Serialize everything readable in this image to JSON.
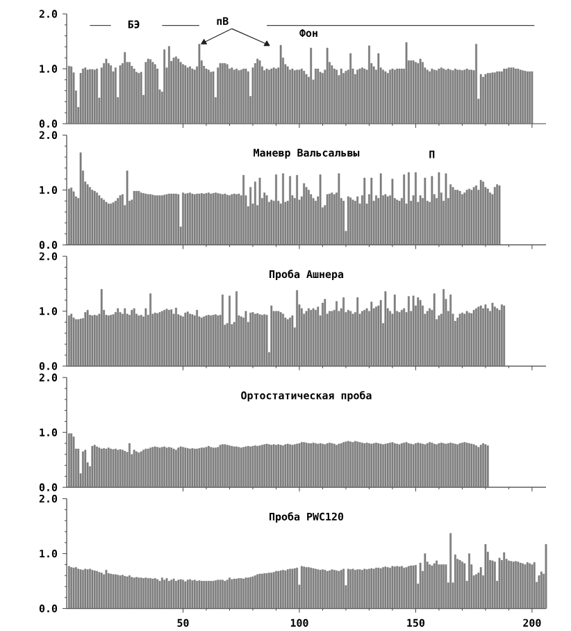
{
  "chart_data": [
    {
      "type": "bar",
      "xlim": [
        0,
        206
      ],
      "ylim": [
        0,
        2
      ],
      "xticks": [
        50,
        100,
        150,
        200
      ],
      "yticks": [
        {
          "value": 0,
          "label": "0.0"
        },
        {
          "value": 1,
          "label": "1.0"
        },
        {
          "value": 2,
          "label": "2.0"
        }
      ],
      "tick_labels": "y",
      "annotations": [
        "БЭ",
        "пВ",
        "Фон"
      ],
      "series": [
        {
          "type": "bar",
          "color": "#808080",
          "x": [
            1,
            2,
            3,
            4,
            5,
            6,
            7,
            8,
            9,
            10,
            11,
            12,
            13,
            14,
            15,
            16,
            17,
            18,
            19,
            20,
            21,
            22,
            23,
            24,
            25,
            26,
            27,
            28,
            29,
            30,
            31,
            32,
            33,
            34,
            35,
            36,
            37,
            38,
            39,
            40,
            41,
            42,
            43,
            44,
            45,
            46,
            47,
            48,
            49,
            50,
            51,
            52,
            53,
            54,
            55,
            56,
            57,
            58,
            59,
            60,
            61,
            62,
            63,
            64,
            65,
            66,
            67,
            68,
            69,
            70,
            71,
            72,
            73,
            74,
            75,
            76,
            77,
            78,
            79,
            80,
            81,
            82,
            83,
            84,
            85,
            86,
            87,
            88,
            89,
            90,
            91,
            92,
            93,
            94,
            95,
            96,
            97,
            98,
            99,
            100,
            101,
            102,
            103,
            104,
            105,
            106,
            107,
            108,
            109,
            110,
            111,
            112,
            113,
            114,
            115,
            116,
            117,
            118,
            119,
            120,
            121,
            122,
            123,
            124,
            125,
            126,
            127,
            128,
            129,
            130,
            131,
            132,
            133,
            134,
            135,
            136,
            137,
            138,
            139,
            140,
            141,
            142,
            143,
            144,
            145,
            146,
            147,
            148,
            149,
            150,
            151,
            152,
            153,
            154,
            155,
            156,
            157,
            158,
            159,
            160,
            161,
            162,
            163,
            164,
            165,
            166,
            167,
            168,
            169,
            170,
            171,
            172,
            173,
            174,
            175,
            176,
            177,
            178,
            179,
            180,
            181,
            182,
            183,
            184,
            185,
            186,
            187,
            188,
            189,
            190,
            191,
            192,
            193,
            194,
            195,
            196,
            197,
            198,
            199,
            200
          ],
          "values": [
            1.05,
            1.04,
            0.93,
            0.6,
            0.3,
            0.92,
            1.0,
            1.02,
            0.98,
            0.99,
            0.99,
            0.98,
            1.0,
            0.47,
            1.02,
            1.1,
            1.18,
            1.1,
            1.06,
            0.95,
            1.02,
            0.48,
            1.06,
            1.1,
            1.3,
            1.12,
            1.12,
            1.05,
            1.0,
            0.94,
            0.92,
            0.94,
            0.52,
            1.12,
            1.18,
            1.17,
            1.12,
            1.08,
            1.0,
            0.62,
            0.58,
            1.35,
            1.02,
            1.41,
            1.14,
            1.2,
            1.22,
            1.18,
            1.12,
            1.08,
            1.06,
            1.02,
            1.04,
            1.0,
            0.98,
            1.04,
            1.45,
            1.15,
            1.05,
            1.0,
            0.98,
            0.94,
            0.95,
            0.48,
            1.02,
            1.1,
            1.1,
            1.1,
            1.08,
            1.0,
            1.02,
            0.98,
            1.0,
            0.97,
            0.98,
            1.0,
            1.0,
            0.95,
            0.5,
            1.02,
            1.1,
            1.18,
            1.15,
            1.04,
            0.97,
            1.0,
            0.98,
            1.0,
            1.02,
            1.0,
            1.02,
            1.43,
            1.2,
            1.08,
            1.04,
            0.98,
            1.0,
            0.97,
            0.98,
            0.98,
            1.0,
            0.96,
            0.9,
            0.85,
            1.38,
            0.8,
            1.0,
            1.0,
            0.94,
            0.92,
            0.98,
            1.38,
            1.12,
            1.06,
            1.0,
            0.98,
            0.88,
            1.0,
            0.92,
            0.96,
            0.98,
            1.28,
            1.0,
            0.9,
            0.98,
            1.0,
            1.02,
            1.0,
            0.98,
            1.42,
            1.1,
            1.04,
            0.98,
            1.28,
            1.02,
            0.98,
            0.95,
            0.92,
            0.98,
            1.0,
            0.98,
            1.0,
            1.0,
            1.0,
            1.0,
            1.48,
            1.15,
            1.15,
            1.15,
            1.12,
            1.1,
            1.18,
            1.12,
            1.02,
            0.98,
            0.95,
            1.0,
            0.98,
            0.97,
            1.0,
            1.02,
            1.0,
            0.98,
            1.0,
            0.98,
            0.97,
            1.0,
            0.98,
            0.98,
            0.97,
            0.98,
            1.0,
            0.98,
            0.98,
            0.97,
            1.45,
            0.45,
            0.9,
            0.85,
            0.9,
            0.92,
            0.92,
            0.93,
            0.93,
            0.95,
            0.95,
            0.95,
            1.0,
            1.0,
            1.02,
            1.02,
            1.02,
            1.0,
            1.0,
            0.98,
            0.97,
            0.96,
            0.95,
            0.95,
            0.95
          ]
        },
        {
          "type": "line",
          "color": "#404040",
          "x": [
            10,
            19
          ],
          "values": [
            1.79,
            1.79
          ]
        },
        {
          "type": "line",
          "color": "#404040",
          "x": [
            41,
            57
          ],
          "values": [
            1.79,
            1.79
          ]
        },
        {
          "type": "line",
          "color": "#404040",
          "x": [
            86,
            201
          ],
          "values": [
            1.79,
            1.79
          ]
        },
        {
          "type": "line",
          "color": "#202020",
          "marker": "triangle",
          "x": [
            71,
            59
          ],
          "values": [
            1.73,
            1.48
          ]
        },
        {
          "type": "line",
          "color": "#202020",
          "marker": "triangle",
          "x": [
            71,
            86
          ],
          "values": [
            1.73,
            1.45
          ]
        }
      ]
    },
    {
      "type": "bar",
      "title": "Маневр Вальсальвы",
      "color": "#808080",
      "xlim": [
        0,
        206
      ],
      "ylim": [
        0,
        2
      ],
      "xticks": [
        50,
        100,
        150,
        200
      ],
      "yticks": [
        {
          "value": 0,
          "label": "0.0"
        },
        {
          "value": 1,
          "label": "1.0"
        },
        {
          "value": 2,
          "label": "2.0"
        }
      ],
      "tick_labels": "y",
      "annotations": [
        "П"
      ],
      "x": [
        1,
        2,
        3,
        4,
        5,
        6,
        7,
        8,
        9,
        10,
        11,
        12,
        13,
        14,
        15,
        16,
        17,
        18,
        19,
        20,
        21,
        22,
        23,
        24,
        25,
        26,
        27,
        28,
        29,
        30,
        31,
        32,
        33,
        34,
        35,
        36,
        37,
        38,
        39,
        40,
        41,
        42,
        43,
        44,
        45,
        46,
        47,
        48,
        49,
        50,
        51,
        52,
        53,
        54,
        55,
        56,
        57,
        58,
        59,
        60,
        61,
        62,
        63,
        64,
        65,
        66,
        67,
        68,
        69,
        70,
        71,
        72,
        73,
        74,
        75,
        76,
        77,
        78,
        79,
        80,
        81,
        82,
        83,
        84,
        85,
        86,
        87,
        88,
        89,
        90,
        91,
        92,
        93,
        94,
        95,
        96,
        97,
        98,
        99,
        100,
        101,
        102,
        103,
        104,
        105,
        106,
        107,
        108,
        109,
        110,
        111,
        112,
        113,
        114,
        115,
        116,
        117,
        118,
        119,
        120,
        121,
        122,
        123,
        124,
        125,
        126,
        127,
        128,
        129,
        130,
        131,
        132,
        133,
        134,
        135,
        136,
        137,
        138,
        139,
        140,
        141,
        142,
        143,
        144,
        145,
        146,
        147,
        148,
        149,
        150,
        151,
        152,
        153,
        154,
        155,
        156,
        157,
        158,
        159,
        160,
        161,
        162,
        163,
        164,
        165,
        166,
        167,
        168,
        169,
        170,
        171,
        172,
        173,
        174,
        175,
        176,
        177,
        178,
        179,
        180,
        181,
        182,
        183,
        184,
        185,
        186
      ],
      "values": [
        1.02,
        1.04,
        0.97,
        0.88,
        0.85,
        1.68,
        1.35,
        1.15,
        1.1,
        1.05,
        1.0,
        0.98,
        0.95,
        0.9,
        0.85,
        0.82,
        0.78,
        0.75,
        0.75,
        0.77,
        0.8,
        0.85,
        0.9,
        0.92,
        0.72,
        1.35,
        0.8,
        0.82,
        0.98,
        0.98,
        0.98,
        0.95,
        0.94,
        0.93,
        0.92,
        0.92,
        0.91,
        0.9,
        0.9,
        0.9,
        0.9,
        0.91,
        0.92,
        0.93,
        0.93,
        0.93,
        0.93,
        0.92,
        0.33,
        0.95,
        0.93,
        0.94,
        0.95,
        0.93,
        0.92,
        0.93,
        0.93,
        0.94,
        0.93,
        0.94,
        0.95,
        0.93,
        0.94,
        0.95,
        0.94,
        0.93,
        0.92,
        0.93,
        0.91,
        0.9,
        0.92,
        0.93,
        0.92,
        0.93,
        0.9,
        1.27,
        0.9,
        0.7,
        1.05,
        0.75,
        1.15,
        0.72,
        1.22,
        0.85,
        0.95,
        0.9,
        0.78,
        0.82,
        0.8,
        1.28,
        0.8,
        0.75,
        1.3,
        0.78,
        0.8,
        1.25,
        0.9,
        0.85,
        1.27,
        0.82,
        0.88,
        1.12,
        1.05,
        1.0,
        0.92,
        0.85,
        0.8,
        0.88,
        1.28,
        0.68,
        0.72,
        0.92,
        0.93,
        0.95,
        0.92,
        0.95,
        1.3,
        0.85,
        0.8,
        0.25,
        0.88,
        0.86,
        0.82,
        0.8,
        0.88,
        0.75,
        0.9,
        1.22,
        0.75,
        0.92,
        1.22,
        0.8,
        0.9,
        0.85,
        1.3,
        0.9,
        0.92,
        0.88,
        0.9,
        1.2,
        0.85,
        0.82,
        0.8,
        0.85,
        1.28,
        0.75,
        1.32,
        0.8,
        0.9,
        1.32,
        0.78,
        0.9,
        0.85,
        1.22,
        0.8,
        0.78,
        1.25,
        0.92,
        0.85,
        1.32,
        0.95,
        0.8,
        1.3,
        0.85,
        1.1,
        1.05,
        1.0,
        1.0,
        0.98,
        0.92,
        0.95,
        1.0,
        1.02,
        1.0,
        1.05,
        1.08,
        1.0,
        1.18,
        1.15,
        1.05,
        1.02,
        0.95,
        0.92,
        1.05,
        1.1,
        1.08
      ]
    },
    {
      "type": "bar",
      "title": "Проба Ашнера",
      "color": "#808080",
      "xlim": [
        0,
        206
      ],
      "ylim": [
        0,
        2
      ],
      "xticks": [
        50,
        100,
        150,
        200
      ],
      "yticks": [
        {
          "value": 0,
          "label": "0.0"
        },
        {
          "value": 1,
          "label": "1.0"
        },
        {
          "value": 2,
          "label": "2.0"
        }
      ],
      "tick_labels": "y",
      "x": [
        1,
        2,
        3,
        4,
        5,
        6,
        7,
        8,
        9,
        10,
        11,
        12,
        13,
        14,
        15,
        16,
        17,
        18,
        19,
        20,
        21,
        22,
        23,
        24,
        25,
        26,
        27,
        28,
        29,
        30,
        31,
        32,
        33,
        34,
        35,
        36,
        37,
        38,
        39,
        40,
        41,
        42,
        43,
        44,
        45,
        46,
        47,
        48,
        49,
        50,
        51,
        52,
        53,
        54,
        55,
        56,
        57,
        58,
        59,
        60,
        61,
        62,
        63,
        64,
        65,
        66,
        67,
        68,
        69,
        70,
        71,
        72,
        73,
        74,
        75,
        76,
        77,
        78,
        79,
        80,
        81,
        82,
        83,
        84,
        85,
        86,
        87,
        88,
        89,
        90,
        91,
        92,
        93,
        94,
        95,
        96,
        97,
        98,
        99,
        100,
        101,
        102,
        103,
        104,
        105,
        106,
        107,
        108,
        109,
        110,
        111,
        112,
        113,
        114,
        115,
        116,
        117,
        118,
        119,
        120,
        121,
        122,
        123,
        124,
        125,
        126,
        127,
        128,
        129,
        130,
        131,
        132,
        133,
        134,
        135,
        136,
        137,
        138,
        139,
        140,
        141,
        142,
        143,
        144,
        145,
        146,
        147,
        148,
        149,
        150,
        151,
        152,
        153,
        154,
        155,
        156,
        157,
        158,
        159,
        160,
        161,
        162,
        163,
        164,
        165,
        166,
        167,
        168,
        169,
        170,
        171,
        172,
        173,
        174,
        175,
        176,
        177,
        178,
        179,
        180,
        181,
        182,
        183,
        184,
        185,
        186,
        187,
        188
      ],
      "values": [
        0.92,
        0.95,
        0.88,
        0.85,
        0.85,
        0.86,
        0.87,
        0.98,
        1.02,
        0.93,
        0.92,
        0.93,
        0.92,
        0.95,
        1.4,
        1.02,
        0.93,
        0.92,
        0.93,
        0.94,
        0.98,
        1.05,
        0.98,
        0.95,
        1.05,
        0.95,
        0.93,
        1.02,
        1.05,
        0.95,
        0.92,
        0.93,
        0.9,
        1.05,
        0.93,
        1.32,
        0.95,
        0.97,
        0.96,
        0.98,
        1.0,
        1.02,
        1.04,
        1.02,
        1.03,
        0.95,
        1.06,
        0.94,
        0.92,
        0.9,
        0.97,
        0.99,
        0.95,
        0.94,
        0.92,
        1.02,
        0.9,
        0.88,
        0.9,
        0.92,
        0.93,
        0.92,
        0.93,
        0.94,
        0.92,
        0.93,
        1.3,
        0.75,
        0.78,
        1.28,
        0.76,
        0.8,
        1.36,
        0.92,
        0.9,
        0.88,
        1.0,
        0.8,
        0.97,
        0.98,
        0.95,
        0.96,
        0.94,
        0.93,
        0.94,
        0.93,
        0.25,
        1.1,
        1.0,
        1.0,
        1.0,
        0.98,
        0.95,
        0.88,
        0.85,
        0.88,
        0.92,
        0.7,
        1.38,
        1.12,
        1.05,
        0.95,
        1.0,
        1.05,
        1.02,
        1.05,
        1.02,
        1.08,
        0.92,
        1.15,
        1.22,
        0.95,
        1.0,
        1.0,
        1.02,
        1.18,
        1.0,
        1.05,
        1.25,
        0.98,
        1.02,
        1.0,
        0.95,
        0.98,
        1.25,
        0.95,
        1.0,
        1.02,
        1.05,
        1.0,
        1.17,
        1.05,
        1.08,
        1.1,
        1.2,
        0.78,
        1.36,
        1.05,
        1.0,
        0.95,
        1.3,
        1.0,
        0.98,
        1.02,
        1.05,
        0.98,
        1.27,
        1.0,
        1.28,
        1.1,
        1.25,
        1.2,
        1.1,
        0.95,
        1.0,
        1.05,
        1.02,
        1.32,
        0.85,
        0.92,
        0.95,
        1.4,
        1.22,
        1.0,
        1.3,
        0.95,
        0.82,
        0.88,
        0.95,
        0.97,
        0.95,
        1.0,
        0.97,
        0.96,
        1.02,
        1.05,
        1.08,
        1.1,
        1.05,
        1.12,
        1.05,
        1.0,
        1.15,
        1.08,
        1.05,
        1.02,
        1.12,
        1.1
      ]
    },
    {
      "type": "bar",
      "title": "Ортостатическая проба",
      "color": "#808080",
      "xlim": [
        0,
        206
      ],
      "ylim": [
        0,
        2
      ],
      "xticks": [
        50,
        100,
        150,
        200
      ],
      "yticks": [
        {
          "value": 0,
          "label": "0.0"
        },
        {
          "value": 1,
          "label": "1.0"
        },
        {
          "value": 2,
          "label": "2.0"
        }
      ],
      "tick_labels": "y",
      "x": [
        1,
        2,
        3,
        4,
        5,
        6,
        7,
        8,
        9,
        10,
        11,
        12,
        13,
        14,
        15,
        16,
        17,
        18,
        19,
        20,
        21,
        22,
        23,
        24,
        25,
        26,
        27,
        28,
        29,
        30,
        31,
        32,
        33,
        34,
        35,
        36,
        37,
        38,
        39,
        40,
        41,
        42,
        43,
        44,
        45,
        46,
        47,
        48,
        49,
        50,
        51,
        52,
        53,
        54,
        55,
        56,
        57,
        58,
        59,
        60,
        61,
        62,
        63,
        64,
        65,
        66,
        67,
        68,
        69,
        70,
        71,
        72,
        73,
        74,
        75,
        76,
        77,
        78,
        79,
        80,
        81,
        82,
        83,
        84,
        85,
        86,
        87,
        88,
        89,
        90,
        91,
        92,
        93,
        94,
        95,
        96,
        97,
        98,
        99,
        100,
        101,
        102,
        103,
        104,
        105,
        106,
        107,
        108,
        109,
        110,
        111,
        112,
        113,
        114,
        115,
        116,
        117,
        118,
        119,
        120,
        121,
        122,
        123,
        124,
        125,
        126,
        127,
        128,
        129,
        130,
        131,
        132,
        133,
        134,
        135,
        136,
        137,
        138,
        139,
        140,
        141,
        142,
        143,
        144,
        145,
        146,
        147,
        148,
        149,
        150,
        151,
        152,
        153,
        154,
        155,
        156,
        157,
        158,
        159,
        160,
        161,
        162,
        163,
        164,
        165,
        166,
        167,
        168,
        169,
        170,
        171,
        172,
        173,
        174,
        175,
        176,
        177,
        178,
        179,
        180,
        181
      ],
      "values": [
        0.98,
        0.98,
        0.92,
        0.7,
        0.7,
        0.25,
        0.65,
        0.68,
        0.45,
        0.38,
        0.75,
        0.77,
        0.74,
        0.72,
        0.7,
        0.71,
        0.7,
        0.72,
        0.7,
        0.69,
        0.7,
        0.68,
        0.69,
        0.68,
        0.66,
        0.64,
        0.8,
        0.6,
        0.68,
        0.65,
        0.63,
        0.65,
        0.68,
        0.7,
        0.7,
        0.72,
        0.73,
        0.74,
        0.73,
        0.72,
        0.73,
        0.74,
        0.72,
        0.73,
        0.72,
        0.7,
        0.68,
        0.72,
        0.74,
        0.73,
        0.72,
        0.71,
        0.7,
        0.71,
        0.7,
        0.7,
        0.71,
        0.72,
        0.72,
        0.73,
        0.75,
        0.73,
        0.72,
        0.72,
        0.73,
        0.77,
        0.78,
        0.78,
        0.77,
        0.76,
        0.75,
        0.74,
        0.74,
        0.73,
        0.72,
        0.73,
        0.74,
        0.75,
        0.74,
        0.75,
        0.76,
        0.75,
        0.76,
        0.77,
        0.78,
        0.79,
        0.78,
        0.77,
        0.78,
        0.77,
        0.78,
        0.77,
        0.76,
        0.78,
        0.79,
        0.78,
        0.77,
        0.78,
        0.79,
        0.8,
        0.82,
        0.82,
        0.81,
        0.8,
        0.8,
        0.81,
        0.8,
        0.79,
        0.8,
        0.79,
        0.78,
        0.8,
        0.81,
        0.8,
        0.79,
        0.77,
        0.79,
        0.8,
        0.82,
        0.83,
        0.84,
        0.83,
        0.82,
        0.84,
        0.83,
        0.82,
        0.81,
        0.8,
        0.81,
        0.8,
        0.79,
        0.8,
        0.81,
        0.8,
        0.79,
        0.78,
        0.79,
        0.8,
        0.81,
        0.82,
        0.8,
        0.79,
        0.78,
        0.8,
        0.81,
        0.82,
        0.8,
        0.79,
        0.78,
        0.8,
        0.81,
        0.8,
        0.79,
        0.78,
        0.8,
        0.82,
        0.81,
        0.79,
        0.78,
        0.8,
        0.81,
        0.8,
        0.79,
        0.8,
        0.81,
        0.8,
        0.79,
        0.78,
        0.8,
        0.81,
        0.82,
        0.81,
        0.8,
        0.79,
        0.78,
        0.76,
        0.73,
        0.77,
        0.8,
        0.78,
        0.76
      ]
    },
    {
      "type": "bar",
      "title": "Проба PWC120",
      "color": "#808080",
      "xlim": [
        0,
        206
      ],
      "ylim": [
        0,
        2
      ],
      "xticks": [
        50,
        100,
        150,
        200
      ],
      "yticks": [
        {
          "value": 0,
          "label": "0.0"
        },
        {
          "value": 1,
          "label": "1.0"
        },
        {
          "value": 2,
          "label": "2.0"
        }
      ],
      "x": [
        1,
        2,
        3,
        4,
        5,
        6,
        7,
        8,
        9,
        10,
        11,
        12,
        13,
        14,
        15,
        16,
        17,
        18,
        19,
        20,
        21,
        22,
        23,
        24,
        25,
        26,
        27,
        28,
        29,
        30,
        31,
        32,
        33,
        34,
        35,
        36,
        37,
        38,
        39,
        40,
        41,
        42,
        43,
        44,
        45,
        46,
        47,
        48,
        49,
        50,
        51,
        52,
        53,
        54,
        55,
        56,
        57,
        58,
        59,
        60,
        61,
        62,
        63,
        64,
        65,
        66,
        67,
        68,
        69,
        70,
        71,
        72,
        73,
        74,
        75,
        76,
        77,
        78,
        79,
        80,
        81,
        82,
        83,
        84,
        85,
        86,
        87,
        88,
        89,
        90,
        91,
        92,
        93,
        94,
        95,
        96,
        97,
        98,
        99,
        100,
        101,
        102,
        103,
        104,
        105,
        106,
        107,
        108,
        109,
        110,
        111,
        112,
        113,
        114,
        115,
        116,
        117,
        118,
        119,
        120,
        121,
        122,
        123,
        124,
        125,
        126,
        127,
        128,
        129,
        130,
        131,
        132,
        133,
        134,
        135,
        136,
        137,
        138,
        139,
        140,
        141,
        142,
        143,
        144,
        145,
        146,
        147,
        148,
        149,
        150,
        151,
        152,
        153,
        154,
        155,
        156,
        157,
        158,
        159,
        160,
        161,
        162,
        163,
        164,
        165,
        166,
        167,
        168,
        169,
        170,
        171,
        172,
        173,
        174,
        175,
        176,
        177,
        178,
        179,
        180,
        181,
        182,
        183,
        184,
        185,
        186,
        187,
        188,
        189,
        190,
        191,
        192,
        193,
        194,
        195,
        196,
        197,
        198,
        199,
        200,
        201,
        202,
        203,
        204,
        205,
        206
      ],
      "values": [
        0.77,
        0.75,
        0.74,
        0.75,
        0.72,
        0.71,
        0.7,
        0.72,
        0.71,
        0.72,
        0.7,
        0.69,
        0.68,
        0.66,
        0.65,
        0.62,
        0.7,
        0.64,
        0.63,
        0.62,
        0.62,
        0.61,
        0.6,
        0.61,
        0.59,
        0.58,
        0.6,
        0.57,
        0.56,
        0.57,
        0.56,
        0.56,
        0.55,
        0.56,
        0.55,
        0.55,
        0.54,
        0.55,
        0.53,
        0.5,
        0.56,
        0.52,
        0.55,
        0.5,
        0.52,
        0.54,
        0.5,
        0.52,
        0.53,
        0.52,
        0.49,
        0.52,
        0.53,
        0.51,
        0.52,
        0.5,
        0.51,
        0.5,
        0.5,
        0.5,
        0.5,
        0.5,
        0.5,
        0.51,
        0.52,
        0.52,
        0.52,
        0.5,
        0.52,
        0.56,
        0.53,
        0.54,
        0.54,
        0.55,
        0.55,
        0.54,
        0.56,
        0.56,
        0.57,
        0.58,
        0.6,
        0.62,
        0.63,
        0.63,
        0.64,
        0.64,
        0.65,
        0.65,
        0.66,
        0.68,
        0.68,
        0.69,
        0.7,
        0.69,
        0.71,
        0.72,
        0.72,
        0.73,
        0.74,
        0.43,
        0.77,
        0.76,
        0.75,
        0.75,
        0.74,
        0.73,
        0.72,
        0.71,
        0.7,
        0.71,
        0.7,
        0.68,
        0.69,
        0.71,
        0.7,
        0.69,
        0.68,
        0.7,
        0.72,
        0.42,
        0.72,
        0.71,
        0.72,
        0.7,
        0.71,
        0.71,
        0.7,
        0.72,
        0.71,
        0.72,
        0.73,
        0.72,
        0.74,
        0.74,
        0.73,
        0.75,
        0.76,
        0.75,
        0.74,
        0.77,
        0.76,
        0.77,
        0.76,
        0.77,
        0.74,
        0.75,
        0.77,
        0.78,
        0.78,
        0.79,
        0.45,
        0.83,
        0.68,
        1.0,
        0.85,
        0.8,
        0.78,
        0.82,
        0.87,
        0.8,
        0.8,
        0.8,
        0.8,
        0.47,
        1.37,
        0.47,
        0.98,
        0.9,
        0.88,
        0.85,
        0.82,
        0.5,
        1.0,
        0.8,
        0.6,
        0.62,
        0.65,
        0.75,
        0.6,
        1.17,
        1.03,
        0.88,
        0.87,
        0.85,
        0.5,
        0.92,
        0.88,
        1.02,
        0.9,
        0.87,
        0.86,
        0.85,
        0.86,
        0.85,
        0.83,
        0.82,
        0.8,
        0.84,
        0.82,
        0.8,
        0.84,
        0.48,
        0.6,
        0.67,
        0.63,
        1.17
      ]
    }
  ]
}
